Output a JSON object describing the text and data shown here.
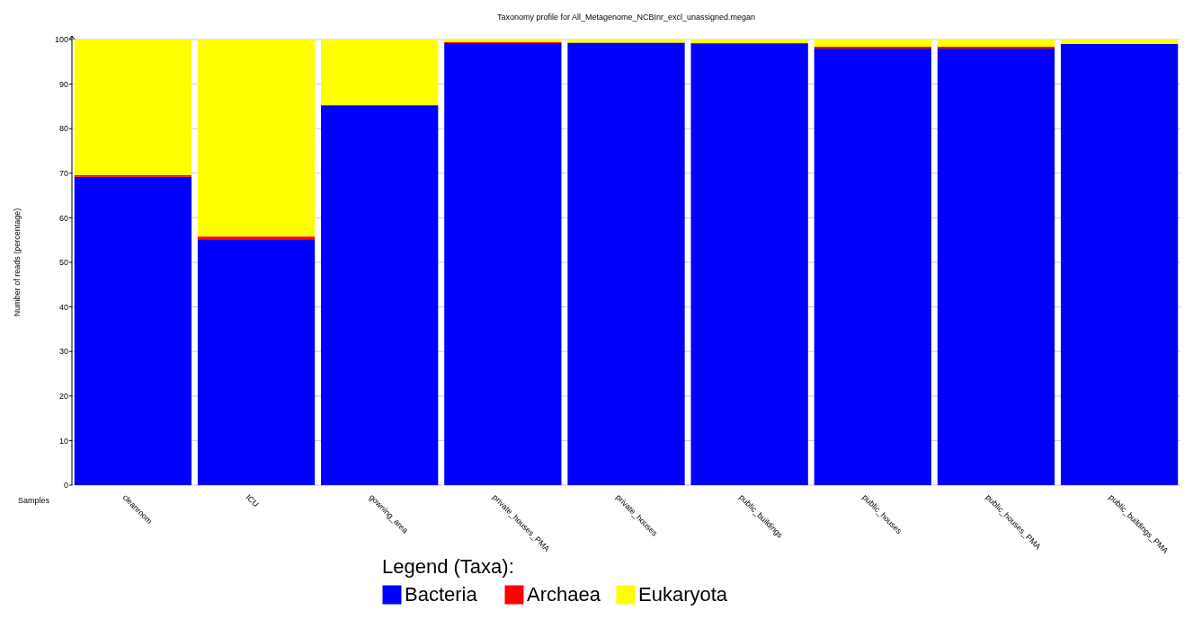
{
  "chart_data": {
    "type": "bar",
    "title": "Taxonomy profile for All_Metagenome_NCBInr_excl_unassigned.megan",
    "xlabel": "Samples",
    "ylabel": "Number of reads (percentage)",
    "legend_title": "Legend (Taxa):",
    "categories": [
      "cleanroom",
      "ICU",
      "gowning_area",
      "private_houses_PMA",
      "private_houses",
      "public_buildings",
      "public_houses",
      "public_houses_PMA",
      "public_buildings_PMA"
    ],
    "stacked": true,
    "series": [
      {
        "name": "Bacteria",
        "color": "#0000ff",
        "values": [
          69.2,
          55.2,
          85.1,
          99.2,
          99.3,
          99.0,
          98.0,
          98.0,
          99.0
        ]
      },
      {
        "name": "Archaea",
        "color": "#ff0000",
        "values": [
          0.4,
          0.6,
          0.2,
          0.2,
          null,
          0.2,
          0.4,
          0.4,
          null
        ]
      },
      {
        "name": "Eukaryota",
        "color": "#ffff00",
        "values": [
          30.4,
          44.2,
          14.7,
          0.6,
          0.7,
          0.8,
          1.6,
          1.6,
          1.0
        ]
      }
    ],
    "ylim": [
      0,
      100
    ],
    "yticks": [
      0,
      10,
      20,
      30,
      40,
      50,
      60,
      70,
      80,
      90,
      100
    ],
    "grid": "y",
    "legend": "bottom"
  }
}
